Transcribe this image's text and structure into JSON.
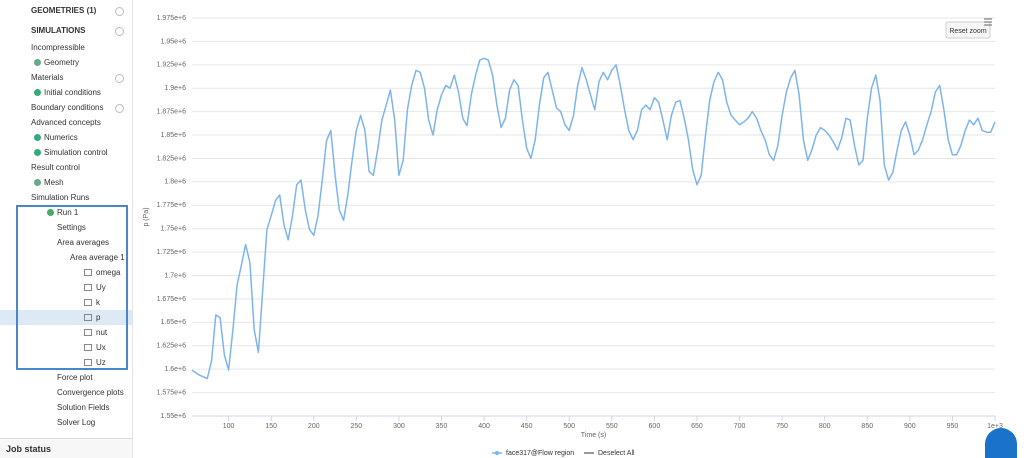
{
  "sidebar": {
    "items": [
      "GEOMETRIES (1)",
      "SIMULATIONS",
      "Incompressible",
      "Geometry",
      "Materials",
      "Initial conditions",
      "Boundary conditions",
      "Advanced concepts",
      "Numerics",
      "Simulation control",
      "Result control",
      "Mesh",
      "Simulation Runs",
      "Run 1",
      "Settings",
      "Area averages",
      "Area average 1",
      "omega",
      "Uy",
      "k",
      "p",
      "nut",
      "Ux",
      "Uz",
      "Force plot",
      "Convergence plots",
      "Solution Fields",
      "Solver Log"
    ],
    "job_status": "Job status"
  },
  "reset_zoom": "Reset zoom",
  "deselect_all": "Deselect All",
  "chart_data": {
    "type": "line",
    "xlabel": "Time (s)",
    "ylabel": "p (Pa)",
    "x": [
      57,
      65,
      75,
      80,
      85,
      90,
      95,
      100,
      105,
      110,
      115,
      120,
      125,
      130,
      135,
      140,
      145,
      150,
      155,
      160,
      165,
      170,
      175,
      180,
      185,
      190,
      195,
      200,
      205,
      210,
      215,
      220,
      225,
      230,
      235,
      240,
      245,
      250,
      255,
      260,
      265,
      270,
      275,
      280,
      285,
      290,
      295,
      300,
      305,
      310,
      315,
      320,
      325,
      330,
      335,
      340,
      345,
      350,
      355,
      360,
      365,
      370,
      375,
      380,
      385,
      390,
      395,
      400,
      405,
      410,
      415,
      420,
      425,
      430,
      435,
      440,
      445,
      450,
      455,
      460,
      465,
      470,
      475,
      480,
      485,
      490,
      495,
      500,
      505,
      510,
      515,
      520,
      525,
      530,
      535,
      540,
      545,
      550,
      555,
      560,
      565,
      570,
      575,
      580,
      585,
      590,
      595,
      600,
      605,
      610,
      615,
      620,
      625,
      630,
      635,
      640,
      645,
      650,
      655,
      660,
      665,
      670,
      675,
      680,
      685,
      690,
      695,
      700,
      705,
      710,
      715,
      720,
      725,
      730,
      735,
      740,
      745,
      750,
      755,
      760,
      765,
      770,
      775,
      780,
      785,
      790,
      795,
      800,
      805,
      810,
      815,
      820,
      825,
      830,
      835,
      840,
      845,
      850,
      855,
      860,
      865,
      870,
      875,
      880,
      885,
      890,
      895,
      900,
      905,
      910,
      915,
      920,
      925,
      930,
      935,
      940,
      945,
      950,
      955,
      960,
      965,
      970,
      975,
      980,
      985,
      990,
      995,
      1000
    ],
    "series": [
      {
        "name": "face317@Flow region",
        "color": "#7cb5ec",
        "values": [
          1599000,
          1594000,
          1590000,
          1609000,
          1658000,
          1655000,
          1615000,
          1599000,
          1642000,
          1690000,
          1711000,
          1733000,
          1714000,
          1642000,
          1618000,
          1684000,
          1749000,
          1764000,
          1780000,
          1786000,
          1754000,
          1738000,
          1764000,
          1797000,
          1802000,
          1770000,
          1749000,
          1743000,
          1764000,
          1802000,
          1844000,
          1855000,
          1807000,
          1770000,
          1759000,
          1786000,
          1823000,
          1855000,
          1871000,
          1855000,
          1811000,
          1807000,
          1834000,
          1866000,
          1882000,
          1898000,
          1866000,
          1807000,
          1823000,
          1877000,
          1903000,
          1919000,
          1917000,
          1900000,
          1866000,
          1850000,
          1877000,
          1893000,
          1903000,
          1900000,
          1914000,
          1896000,
          1868000,
          1860000,
          1893000,
          1914000,
          1930000,
          1932000,
          1930000,
          1914000,
          1882000,
          1858000,
          1868000,
          1898000,
          1909000,
          1903000,
          1866000,
          1836000,
          1825000,
          1845000,
          1882000,
          1911000,
          1917000,
          1898000,
          1879000,
          1875000,
          1861000,
          1855000,
          1871000,
          1903000,
          1922000,
          1909000,
          1893000,
          1877000,
          1907000,
          1917000,
          1909000,
          1919000,
          1925000,
          1903000,
          1877000,
          1855000,
          1845000,
          1855000,
          1877000,
          1882000,
          1877000,
          1890000,
          1885000,
          1866000,
          1845000,
          1871000,
          1885000,
          1887000,
          1868000,
          1845000,
          1813000,
          1797000,
          1807000,
          1850000,
          1887000,
          1907000,
          1917000,
          1909000,
          1885000,
          1871000,
          1866000,
          1861000,
          1864000,
          1868000,
          1875000,
          1868000,
          1855000,
          1845000,
          1829000,
          1823000,
          1839000,
          1871000,
          1896000,
          1911000,
          1919000,
          1893000,
          1845000,
          1823000,
          1834000,
          1850000,
          1858000,
          1855000,
          1850000,
          1843000,
          1834000,
          1847000,
          1868000,
          1866000,
          1839000,
          1818000,
          1823000,
          1868000,
          1900000,
          1914000,
          1887000,
          1818000,
          1802000,
          1810000,
          1834000,
          1855000,
          1864000,
          1850000,
          1829000,
          1834000,
          1845000,
          1861000,
          1875000,
          1896000,
          1903000,
          1877000,
          1845000,
          1829000,
          1829000,
          1839000,
          1855000,
          1866000,
          1861000,
          1868000,
          1855000,
          1853000,
          1853000,
          1864000
        ]
      }
    ],
    "xlim": [
      57,
      1000
    ],
    "xticks": [
      100,
      150,
      200,
      250,
      300,
      350,
      400,
      450,
      500,
      550,
      600,
      650,
      700,
      750,
      800,
      850,
      900,
      950,
      {
        "value": 1000,
        "label": "1e+3"
      }
    ],
    "ylim": [
      1550000,
      1975000
    ],
    "yticks": [
      {
        "value": 1550000,
        "label": "1.55e+6"
      },
      {
        "value": 1575000,
        "label": "1.575e+6"
      },
      {
        "value": 1600000,
        "label": "1.6e+6"
      },
      {
        "value": 1625000,
        "label": "1.625e+6"
      },
      {
        "value": 1650000,
        "label": "1.65e+6"
      },
      {
        "value": 1675000,
        "label": "1.675e+6"
      },
      {
        "value": 1700000,
        "label": "1.7e+6"
      },
      {
        "value": 1725000,
        "label": "1.725e+6"
      },
      {
        "value": 1750000,
        "label": "1.75e+6"
      },
      {
        "value": 1775000,
        "label": "1.775e+6"
      },
      {
        "value": 1800000,
        "label": "1.8e+6"
      },
      {
        "value": 1825000,
        "label": "1.825e+6"
      },
      {
        "value": 1850000,
        "label": "1.85e+6"
      },
      {
        "value": 1875000,
        "label": "1.875e+6"
      },
      {
        "value": 1900000,
        "label": "1.9e+6"
      },
      {
        "value": 1925000,
        "label": "1.925e+6"
      },
      {
        "value": 1950000,
        "label": "1.95e+6"
      },
      {
        "value": 1975000,
        "label": "1.975e+6"
      }
    ],
    "grid": true,
    "legend": "bottom"
  }
}
